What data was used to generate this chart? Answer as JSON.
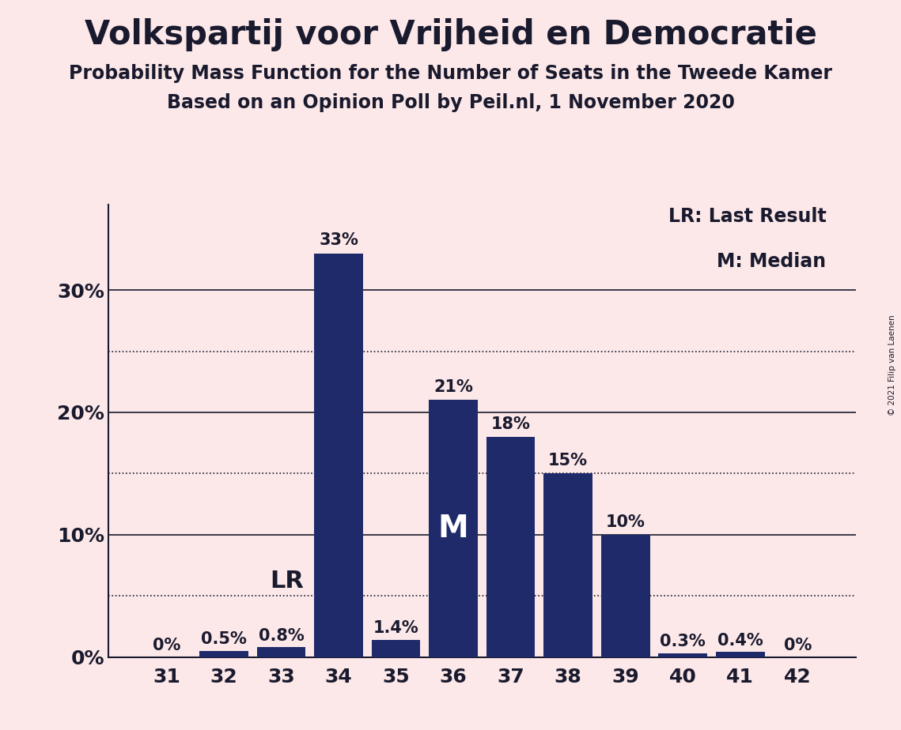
{
  "title": "Volkspartij voor Vrijheid en Democratie",
  "subtitle1": "Probability Mass Function for the Number of Seats in the Tweede Kamer",
  "subtitle2": "Based on an Opinion Poll by Peil.nl, 1 November 2020",
  "copyright": "© 2021 Filip van Laenen",
  "categories": [
    31,
    32,
    33,
    34,
    35,
    36,
    37,
    38,
    39,
    40,
    41,
    42
  ],
  "values": [
    0.0,
    0.5,
    0.8,
    33.0,
    1.4,
    21.0,
    18.0,
    15.0,
    10.0,
    0.3,
    0.4,
    0.0
  ],
  "bar_color": "#1f2a6b",
  "background_color": "#fce8e8",
  "label_color": "#1a1a2e",
  "ylim": [
    0,
    37
  ],
  "solid_gridlines": [
    0,
    10,
    20,
    30
  ],
  "dotted_gridlines": [
    5,
    15,
    25
  ],
  "lr_bar": 33,
  "median_bar": 36,
  "legend_line1": "LR: Last Result",
  "legend_line2": "M: Median",
  "title_fontsize": 30,
  "subtitle_fontsize": 17,
  "label_fontsize": 18,
  "bar_label_fontsize": 15,
  "annotation_fontsize_lr": 22,
  "annotation_fontsize_m": 28
}
